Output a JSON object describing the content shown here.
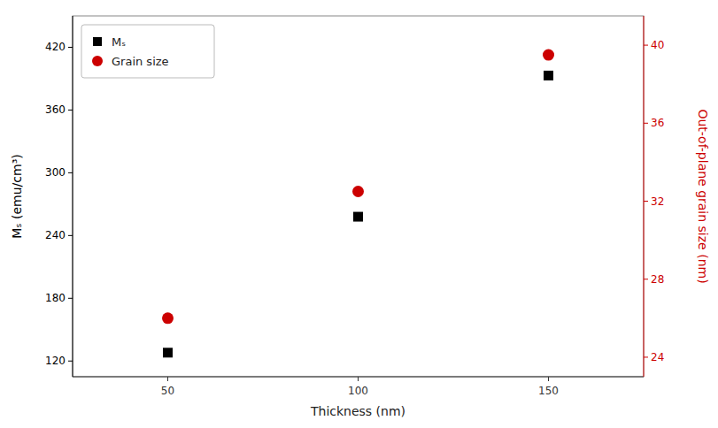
{
  "chart_data": {
    "type": "scatter",
    "xlabel": "Thickness (nm)",
    "ylabel": "Mₛ (emu/cm³)",
    "y2label": "Out-of-plane grain size (nm)",
    "x": [
      50,
      100,
      150
    ],
    "xlim": [
      25,
      175
    ],
    "xticks": [
      50,
      100,
      150
    ],
    "ylim": [
      105,
      450
    ],
    "yticks": [
      120,
      180,
      240,
      300,
      360,
      420
    ],
    "y2lim": [
      23.0,
      41.5
    ],
    "y2ticks": [
      24,
      28,
      32,
      36,
      40
    ],
    "series": [
      {
        "name": "Mₛ",
        "color": "#000000",
        "marker": "square",
        "values": [
          128,
          258,
          393
        ]
      },
      {
        "name": "Grain size",
        "color": "#cc0000",
        "marker": "circle",
        "axis": "y2",
        "values": [
          26.0,
          32.5,
          39.5
        ]
      }
    ],
    "legend": "upper left",
    "grid": false
  }
}
